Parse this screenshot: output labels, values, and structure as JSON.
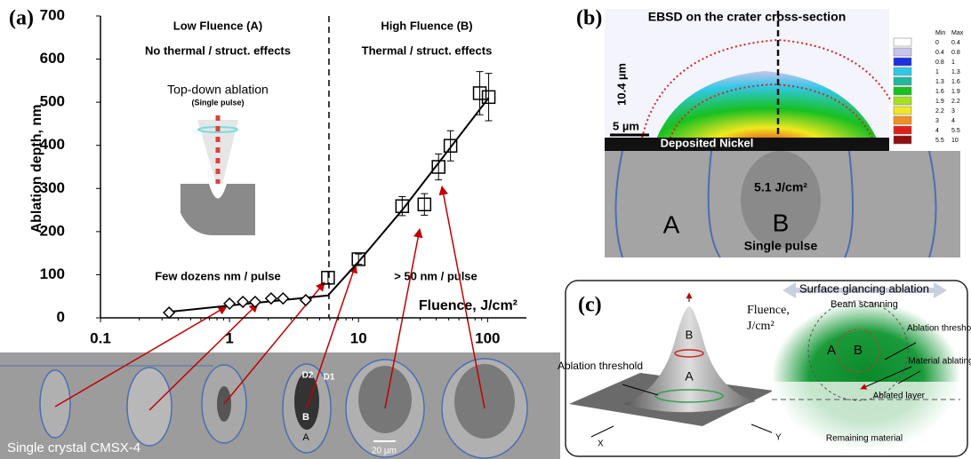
{
  "chart_data": {
    "type": "scatter",
    "title": "(a)",
    "x_label": "Fluence, J/cm²",
    "y_label": "Ablation depth, nm",
    "xlim": [
      0.1,
      200
    ],
    "ylim": [
      0,
      700
    ],
    "log_x": true,
    "xticks": [
      0.1,
      1,
      10,
      100
    ],
    "yticks": [
      0,
      100,
      200,
      300,
      400,
      500,
      600,
      700
    ],
    "threshold_x": 5.9,
    "series": [
      {
        "marker": "diamond",
        "color": "#000000",
        "x": [
          0.34,
          1.0,
          1.27,
          1.58,
          2.1,
          2.6,
          3.9
        ],
        "values": [
          12,
          33,
          37,
          37,
          45,
          45,
          41
        ]
      },
      {
        "marker": "square",
        "color": "#000000",
        "x": [
          5.8,
          10,
          21.8,
          32.4,
          41.7,
          51.6,
          87,
          102
        ],
        "values": [
          93,
          136,
          259,
          263,
          350,
          399,
          521,
          512
        ],
        "errors": [
          15,
          12,
          22,
          25,
          30,
          35,
          50,
          55
        ]
      }
    ],
    "fit": {
      "color": "#000000",
      "x": [
        0.34,
        5.8,
        10,
        21.8,
        102
      ],
      "y": [
        14,
        52,
        130,
        250,
        510
      ]
    },
    "annotations": {
      "low_title": "Low Fluence (A)",
      "low_sub": "No thermal / struct. effects",
      "high_title": "High Fluence (B)",
      "high_sub": "Thermal / struct. effects",
      "inset_title": "Top-down ablation",
      "inset_sub": "(Single pulse)",
      "low_rate": "Few dozens nm / pulse",
      "high_rate": "> 50 nm / pulse"
    },
    "micrographs": {
      "caption": "Single crystal CMSX-4",
      "scale": "20 µm",
      "d2": "D2",
      "d1": "D1",
      "b": "B",
      "a": "A"
    }
  },
  "panel_b": {
    "label": "(b)",
    "title": "EBSD on the crater cross-section",
    "height": "10.4 µm",
    "scale": "5 µm",
    "deposit": "Deposited Nickel",
    "fluence": "5.1 J/cm²",
    "a": "A",
    "b": "B",
    "pulse": "Single pulse",
    "legend": {
      "header": [
        "Min",
        "Max"
      ],
      "rows": [
        [
          "0",
          "0.4"
        ],
        [
          "0.4",
          "0.8"
        ],
        [
          "0.8",
          "1"
        ],
        [
          "1",
          "1.3"
        ],
        [
          "1.3",
          "1.6"
        ],
        [
          "1.6",
          "1.9"
        ],
        [
          "1.9",
          "2.2"
        ],
        [
          "2.2",
          "3"
        ],
        [
          "3",
          "4"
        ],
        [
          "4",
          "5.5"
        ],
        [
          "5.5",
          "10"
        ]
      ],
      "colors": [
        "#ffffff",
        "#c8c4ec",
        "#1e2ee0",
        "#31c8e8",
        "#20b8a0",
        "#18c020",
        "#a8e020",
        "#f0e820",
        "#f09020",
        "#e02018",
        "#901010"
      ]
    }
  },
  "panel_c": {
    "label": "(c)",
    "fluence": "Fluence,",
    "units": "J/cm²",
    "threshold": "Ablation threshold",
    "b": "B",
    "a": "A",
    "x": "X",
    "y": "Y",
    "right_title": "Surface glancing ablation",
    "scanning": "Beam scanning",
    "right_threshold": "Ablation threshold",
    "ablating": "Material ablating",
    "ra": "A",
    "rb": "B",
    "layer": "Ablated layer",
    "remaining": "Remaining material"
  }
}
